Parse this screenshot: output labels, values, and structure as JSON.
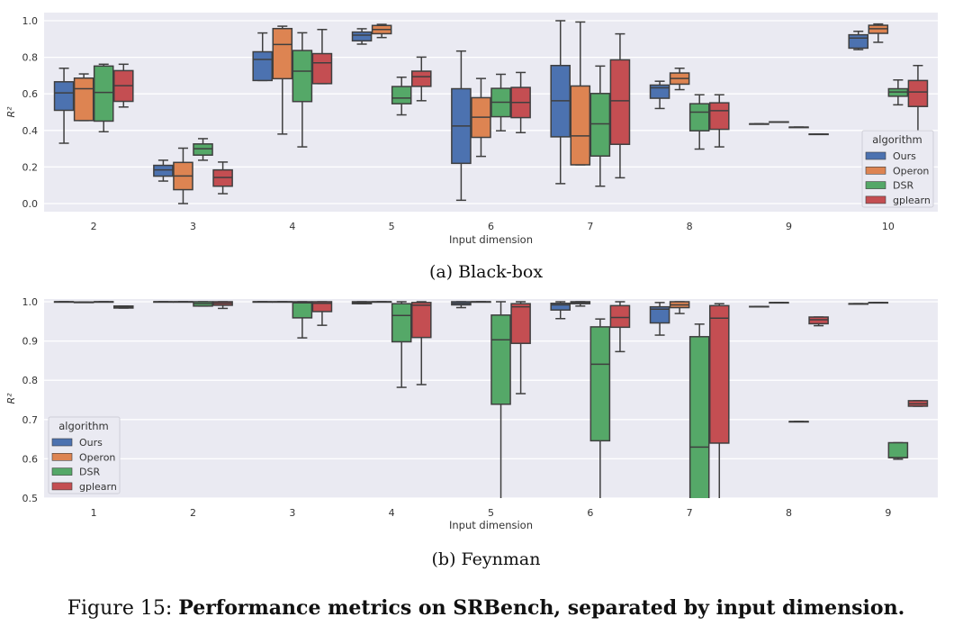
{
  "colors": {
    "Ours": "#4c72b0",
    "Operon": "#dd8452",
    "DSR": "#55a868",
    "gplearn": "#c44e52",
    "background": "#eaeaf2",
    "edge": "#3f3f3f"
  },
  "chart_data": [
    {
      "type": "box",
      "caption": "(a) Black-box",
      "xlabel": "Input dimension",
      "ylabel": "R²",
      "ylim": [
        -0.035,
        1.05
      ],
      "yticks": [
        "0.0",
        "0.2",
        "0.4",
        "0.6",
        "0.8",
        "1.0"
      ],
      "ytick_values": [
        0,
        0.2,
        0.4,
        0.6,
        0.8,
        1.0
      ],
      "grid": true,
      "legend": {
        "title": "algorithm",
        "placement": "lower-right",
        "entries": [
          "Ours",
          "Operon",
          "DSR",
          "gplearn"
        ]
      },
      "categories": [
        "2",
        "3",
        "4",
        "5",
        "6",
        "7",
        "8",
        "9",
        "10"
      ],
      "box_format": [
        "whisker_low",
        "q1",
        "median",
        "q3",
        "whisker_high"
      ],
      "series": [
        {
          "name": "Ours",
          "boxes": [
            [
              0.33,
              0.51,
              0.605,
              0.666,
              0.74
            ],
            [
              0.123,
              0.15,
              0.184,
              0.209,
              0.237
            ],
            [
              0.673,
              0.673,
              0.788,
              0.83,
              0.933
            ],
            [
              0.872,
              0.89,
              0.921,
              0.938,
              0.956
            ],
            [
              0.018,
              0.22,
              0.424,
              0.628,
              0.834
            ],
            [
              0.109,
              0.365,
              0.5625,
              0.755,
              1.0
            ],
            [
              0.52,
              0.576,
              0.633,
              0.648,
              0.669
            ],
            [
              0.436,
              0.436,
              0.436,
              0.436,
              0.436
            ],
            [
              0.842,
              0.85,
              0.905,
              0.923,
              0.942
            ]
          ]
        },
        {
          "name": "Operon",
          "boxes": [
            [
              0.454,
              0.454,
              0.628,
              0.686,
              0.709
            ],
            [
              0.0,
              0.076,
              0.151,
              0.225,
              0.303
            ],
            [
              0.38,
              0.683,
              0.87,
              0.957,
              0.97
            ],
            [
              0.908,
              0.929,
              0.952,
              0.974,
              0.98
            ],
            [
              0.258,
              0.362,
              0.472,
              0.579,
              0.684
            ],
            [
              0.212,
              0.212,
              0.37,
              0.643,
              0.993
            ],
            [
              0.623,
              0.653,
              0.684,
              0.714,
              0.74
            ],
            [
              0.447,
              0.447,
              0.447,
              0.447,
              0.447
            ],
            [
              0.882,
              0.931,
              0.956,
              0.975,
              0.982
            ]
          ]
        },
        {
          "name": "DSR",
          "boxes": [
            [
              0.393,
              0.451,
              0.608,
              0.752,
              0.762
            ],
            [
              0.237,
              0.265,
              0.3,
              0.326,
              0.355
            ],
            [
              0.31,
              0.558,
              0.724,
              0.837,
              0.934
            ],
            [
              0.485,
              0.546,
              0.577,
              0.64,
              0.691
            ],
            [
              0.398,
              0.475,
              0.554,
              0.63,
              0.707
            ],
            [
              0.095,
              0.26,
              0.436,
              0.602,
              0.752
            ],
            [
              0.298,
              0.398,
              0.5,
              0.546,
              0.595
            ],
            [
              0.418,
              0.418,
              0.418,
              0.418,
              0.418
            ],
            [
              0.54,
              0.587,
              0.61,
              0.628,
              0.676
            ]
          ]
        },
        {
          "name": "gplearn",
          "boxes": [
            [
              0.528,
              0.559,
              0.645,
              0.727,
              0.762
            ],
            [
              0.054,
              0.095,
              0.143,
              0.184,
              0.227
            ],
            [
              0.656,
              0.656,
              0.77,
              0.82,
              0.952
            ],
            [
              0.5625,
              0.641,
              0.694,
              0.724,
              0.801
            ],
            [
              0.388,
              0.47,
              0.553,
              0.635,
              0.717
            ],
            [
              0.141,
              0.324,
              0.5625,
              0.786,
              0.928
            ],
            [
              0.31,
              0.406,
              0.508,
              0.551,
              0.595
            ],
            [
              0.38,
              0.38,
              0.38,
              0.38,
              0.38
            ],
            [
              0.391,
              0.531,
              0.61,
              0.673,
              0.755
            ]
          ]
        }
      ]
    },
    {
      "type": "box",
      "caption": "(b) Feynman",
      "xlabel": "Input dimension",
      "ylabel": "R²",
      "ylim": [
        0.5,
        1.005
      ],
      "yticks": [
        "0.5",
        "0.6",
        "0.7",
        "0.8",
        "0.9",
        "1.0"
      ],
      "ytick_values": [
        0.5,
        0.6,
        0.7,
        0.8,
        0.9,
        1.0
      ],
      "grid": true,
      "legend": {
        "title": "algorithm",
        "placement": "lower-left",
        "entries": [
          "Ours",
          "Operon",
          "DSR",
          "gplearn"
        ]
      },
      "categories": [
        "1",
        "2",
        "3",
        "4",
        "5",
        "6",
        "7",
        "8",
        "9"
      ],
      "box_format": [
        "whisker_low",
        "q1",
        "median",
        "q3",
        "whisker_high"
      ],
      "series": [
        {
          "name": "Ours",
          "boxes": [
            [
              1.0,
              1.0,
              1.0,
              1.0,
              1.0
            ],
            [
              1.0,
              1.0,
              1.0,
              1.0,
              1.0
            ],
            [
              1.0,
              1.0,
              1.0,
              1.0,
              1.0
            ],
            [
              0.995,
              0.995,
              0.998,
              1.0,
              1.0
            ],
            [
              0.985,
              0.992,
              0.996,
              1.0,
              1.0
            ],
            [
              0.957,
              0.979,
              0.992,
              0.996,
              1.0
            ],
            [
              0.915,
              0.946,
              0.981,
              0.987,
              0.998
            ],
            [
              0.988,
              0.988,
              0.988,
              0.988,
              0.988
            ],
            [
              0.995,
              0.995,
              0.995,
              0.995,
              0.995
            ]
          ]
        },
        {
          "name": "Operon",
          "boxes": [
            [
              0.999,
              0.999,
              0.999,
              0.999,
              0.999
            ],
            [
              1.0,
              1.0,
              1.0,
              1.0,
              1.0
            ],
            [
              1.0,
              1.0,
              1.0,
              1.0,
              1.0
            ],
            [
              1.0,
              1.0,
              1.0,
              1.0,
              1.0
            ],
            [
              1.0,
              1.0,
              1.0,
              1.0,
              1.0
            ],
            [
              0.989,
              0.995,
              0.998,
              1.0,
              1.0
            ],
            [
              0.97,
              0.985,
              0.992,
              1.0,
              1.0
            ],
            [
              0.998,
              0.998,
              0.998,
              0.998,
              0.998
            ],
            [
              0.998,
              0.998,
              0.998,
              0.998,
              0.998
            ]
          ]
        },
        {
          "name": "DSR",
          "boxes": [
            [
              1.0,
              1.0,
              1.0,
              1.0,
              1.0
            ],
            [
              0.989,
              0.989,
              0.995,
              1.0,
              1.0
            ],
            [
              0.908,
              0.959,
              0.997,
              1.0,
              1.0
            ],
            [
              0.782,
              0.898,
              0.965,
              0.995,
              1.0
            ],
            [
              0.3,
              0.739,
              0.903,
              0.966,
              1.0
            ],
            [
              0.3,
              0.646,
              0.841,
              0.936,
              0.956
            ],
            [
              0.2,
              0.4,
              0.63,
              0.911,
              0.943
            ],
            [
              0.695,
              0.695,
              0.695,
              0.695,
              0.695
            ],
            [
              0.599,
              0.603,
              0.603,
              0.641,
              0.641
            ]
          ]
        },
        {
          "name": "gplearn",
          "boxes": [
            [
              0.984,
              0.984,
              0.986,
              0.989,
              0.989
            ],
            [
              0.983,
              0.991,
              0.996,
              1.0,
              1.0
            ],
            [
              0.94,
              0.975,
              0.996,
              1.0,
              1.0
            ],
            [
              0.789,
              0.909,
              0.991,
              0.998,
              1.0
            ],
            [
              0.766,
              0.894,
              0.987,
              0.995,
              1.0
            ],
            [
              0.873,
              0.935,
              0.96,
              0.99,
              1.0
            ],
            [
              0.4,
              0.64,
              0.958,
              0.99,
              0.995
            ],
            [
              0.939,
              0.944,
              0.954,
              0.961,
              0.961
            ],
            [
              0.734,
              0.734,
              0.74,
              0.748,
              0.748
            ]
          ]
        }
      ]
    }
  ],
  "figure_caption": {
    "label": "Figure 15:",
    "text": "Performance metrics on SRBench, separated by input dimension."
  }
}
